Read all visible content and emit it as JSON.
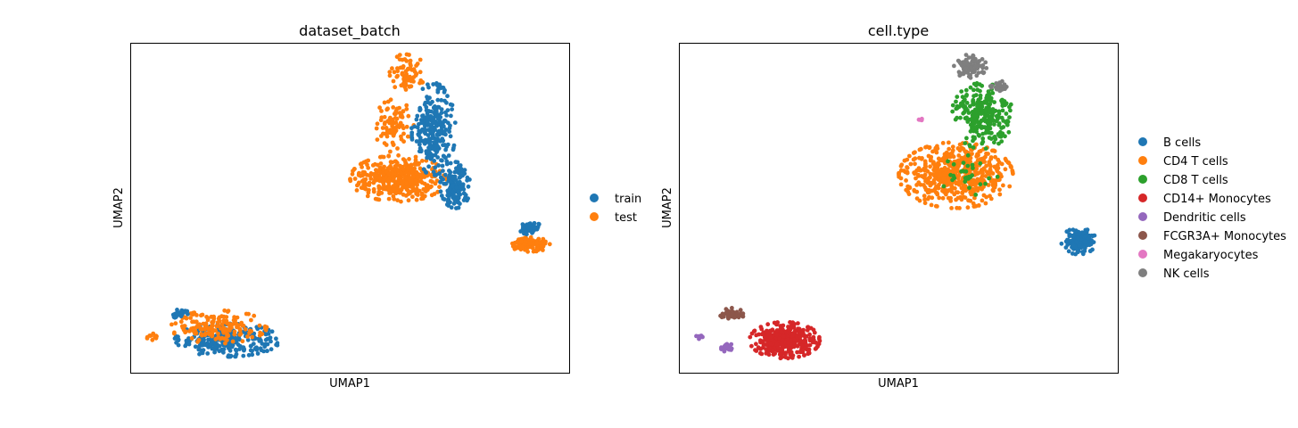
{
  "chart_data": [
    {
      "type": "scatter",
      "title": "dataset_batch",
      "xlabel": "UMAP1",
      "ylabel": "UMAP2",
      "xlim": [
        0,
        100
      ],
      "ylim": [
        0,
        100
      ],
      "grid": false,
      "ticks": false,
      "legend_position": "right",
      "series": [
        {
          "name": "train",
          "color": "#1f77b4"
        },
        {
          "name": "test",
          "color": "#ff7f0e"
        }
      ],
      "clusters": [
        {
          "series": "train",
          "cx": 22,
          "cy": 10,
          "rx": 12,
          "ry": 5,
          "n": 260
        },
        {
          "series": "test",
          "cx": 20,
          "cy": 14,
          "rx": 11,
          "ry": 5,
          "n": 170
        },
        {
          "series": "test",
          "cx": 5,
          "cy": 11,
          "rx": 1.6,
          "ry": 1,
          "n": 10
        },
        {
          "series": "train",
          "cx": 11,
          "cy": 18,
          "rx": 2,
          "ry": 2,
          "n": 25
        },
        {
          "series": "test",
          "cx": 61,
          "cy": 59,
          "rx": 11,
          "ry": 7,
          "n": 420
        },
        {
          "series": "test",
          "cx": 60,
          "cy": 75,
          "rx": 4.5,
          "ry": 8,
          "n": 90
        },
        {
          "series": "test",
          "cx": 63,
          "cy": 91,
          "rx": 4,
          "ry": 6,
          "n": 70
        },
        {
          "series": "train",
          "cx": 69,
          "cy": 74,
          "rx": 5,
          "ry": 14,
          "n": 260
        },
        {
          "series": "train",
          "cx": 74,
          "cy": 57,
          "rx": 3.5,
          "ry": 7,
          "n": 130
        },
        {
          "series": "test",
          "cx": 91,
          "cy": 39,
          "rx": 4.5,
          "ry": 2.2,
          "n": 110
        },
        {
          "series": "train",
          "cx": 91,
          "cy": 44,
          "rx": 2.5,
          "ry": 2,
          "n": 45
        }
      ]
    },
    {
      "type": "scatter",
      "title": "cell.type",
      "xlabel": "UMAP1",
      "ylabel": "UMAP2",
      "xlim": [
        0,
        100
      ],
      "ylim": [
        0,
        100
      ],
      "grid": false,
      "ticks": false,
      "legend_position": "right",
      "series": [
        {
          "name": "B cells",
          "color": "#1f77b4"
        },
        {
          "name": "CD4 T cells",
          "color": "#ff7f0e"
        },
        {
          "name": "CD8 T cells",
          "color": "#2ca02c"
        },
        {
          "name": "CD14+ Monocytes",
          "color": "#d62728"
        },
        {
          "name": "Dendritic cells",
          "color": "#9467bd"
        },
        {
          "name": "FCGR3A+ Monocytes",
          "color": "#8c564b"
        },
        {
          "name": "Megakaryocytes",
          "color": "#e377c2"
        },
        {
          "name": "NK cells",
          "color": "#7f7f7f"
        }
      ],
      "clusters": [
        {
          "series": "CD4 T cells",
          "cx": 63,
          "cy": 60,
          "rx": 13,
          "ry": 10,
          "n": 560
        },
        {
          "series": "CD8 T cells",
          "cx": 69,
          "cy": 78,
          "rx": 7,
          "ry": 10,
          "n": 260
        },
        {
          "series": "CD8 T cells",
          "cx": 66,
          "cy": 60,
          "rx": 9,
          "ry": 6,
          "n": 30
        },
        {
          "series": "NK cells",
          "cx": 66,
          "cy": 93,
          "rx": 4,
          "ry": 3.5,
          "n": 90
        },
        {
          "series": "NK cells",
          "cx": 73,
          "cy": 87,
          "rx": 2.5,
          "ry": 1.5,
          "n": 25
        },
        {
          "series": "B cells",
          "cx": 91,
          "cy": 40,
          "rx": 4,
          "ry": 4,
          "n": 160
        },
        {
          "series": "CD14+ Monocytes",
          "cx": 24,
          "cy": 10,
          "rx": 8,
          "ry": 5.5,
          "n": 360
        },
        {
          "series": "FCGR3A+ Monocytes",
          "cx": 12,
          "cy": 18,
          "rx": 2.8,
          "ry": 1.8,
          "n": 45
        },
        {
          "series": "Dendritic cells",
          "cx": 11,
          "cy": 8,
          "rx": 1.6,
          "ry": 1.6,
          "n": 22
        },
        {
          "series": "Dendritic cells",
          "cx": 5,
          "cy": 11,
          "rx": 1.2,
          "ry": 0.8,
          "n": 7
        },
        {
          "series": "Megakaryocytes",
          "cx": 55,
          "cy": 77,
          "rx": 0.6,
          "ry": 0.5,
          "n": 4
        }
      ]
    }
  ]
}
